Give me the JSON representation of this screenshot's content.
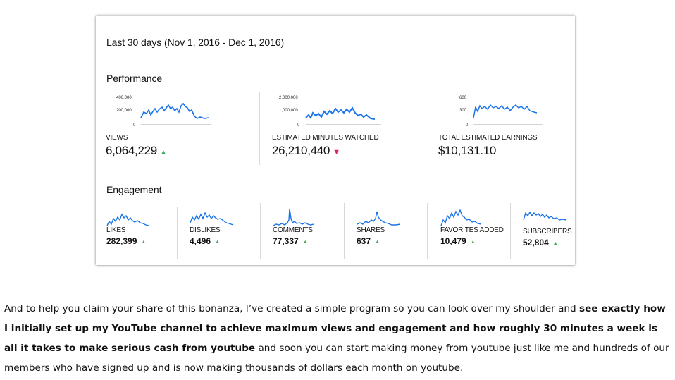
{
  "card": {
    "period": "Last 30 days (Nov 1, 2016 - Dec 1, 2016)",
    "performance": {
      "title": "Performance",
      "metrics": [
        {
          "label": "VIEWS",
          "value": "6,064,229",
          "trend": "up",
          "ticks": [
            "400,000",
            "200,000",
            "0"
          ]
        },
        {
          "label": "ESTIMATED MINUTES WATCHED",
          "value": "26,210,440",
          "trend": "down",
          "ticks": [
            "2,000,000",
            "1,000,000",
            "0"
          ]
        },
        {
          "label": "TOTAL ESTIMATED EARNINGS",
          "value": "$10,131.10",
          "trend": "none",
          "ticks": [
            "600",
            "300",
            "0"
          ]
        }
      ]
    },
    "engagement": {
      "title": "Engagement",
      "metrics": [
        {
          "label": "LIKES",
          "value": "282,399"
        },
        {
          "label": "DISLIKES",
          "value": "4,496"
        },
        {
          "label": "COMMENTS",
          "value": "77,337"
        },
        {
          "label": "SHARES",
          "value": "637"
        },
        {
          "label": "FAVORITES ADDED",
          "value": "10,479"
        },
        {
          "label": "SUBSCRIBERS",
          "value": "52,804"
        }
      ]
    },
    "arrows": {
      "up": "▲",
      "down": "▼"
    },
    "colors": {
      "line": "#1a73e8",
      "up": "#34a853",
      "down": "#e0245e"
    }
  },
  "paragraph": {
    "p1": "And to help you claim your share of this bonanza, I’ve created a simple program so you can look over my shoulder and ",
    "bold": "see exactly how I initially set up my YouTube channel to achieve maximum views and engagement and how roughly 30 minutes a week is all it takes to make serious cash from youtube",
    "p2": " and soon you can start making money from youtube just like me and hundreds of our members who have signed up and is now making thousands of dollars each month on youtube."
  }
}
